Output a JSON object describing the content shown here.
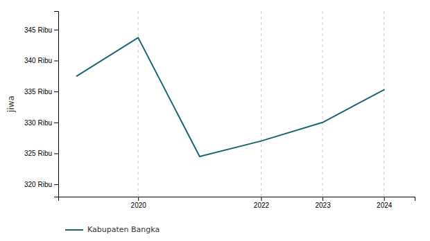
{
  "chart_data": {
    "type": "line",
    "x": [
      2019,
      2020,
      2021,
      2022,
      2023,
      2024
    ],
    "series": [
      {
        "name": "Kabupaten Bangka",
        "color": "#1a6670",
        "values": [
          337.5,
          343.7,
          324.5,
          327.0,
          330.0,
          335.29
        ]
      }
    ],
    "y_label": "jiwa",
    "xlim": [
      2018.7,
      2024.5
    ],
    "xticks": [
      2020,
      2022,
      2023,
      2024
    ],
    "ylim": [
      318,
      348
    ],
    "yticks": [
      {
        "value": 320,
        "label": "320 Ribu"
      },
      {
        "value": 325,
        "label": "325 Ribu"
      },
      {
        "value": 330,
        "label": "330 Ribu"
      },
      {
        "value": 335,
        "label": "335 Ribu"
      },
      {
        "value": 340,
        "label": "340 Ribu"
      },
      {
        "value": 345,
        "label": "345 Ribu"
      }
    ],
    "grid": true,
    "legend": "bottom"
  }
}
